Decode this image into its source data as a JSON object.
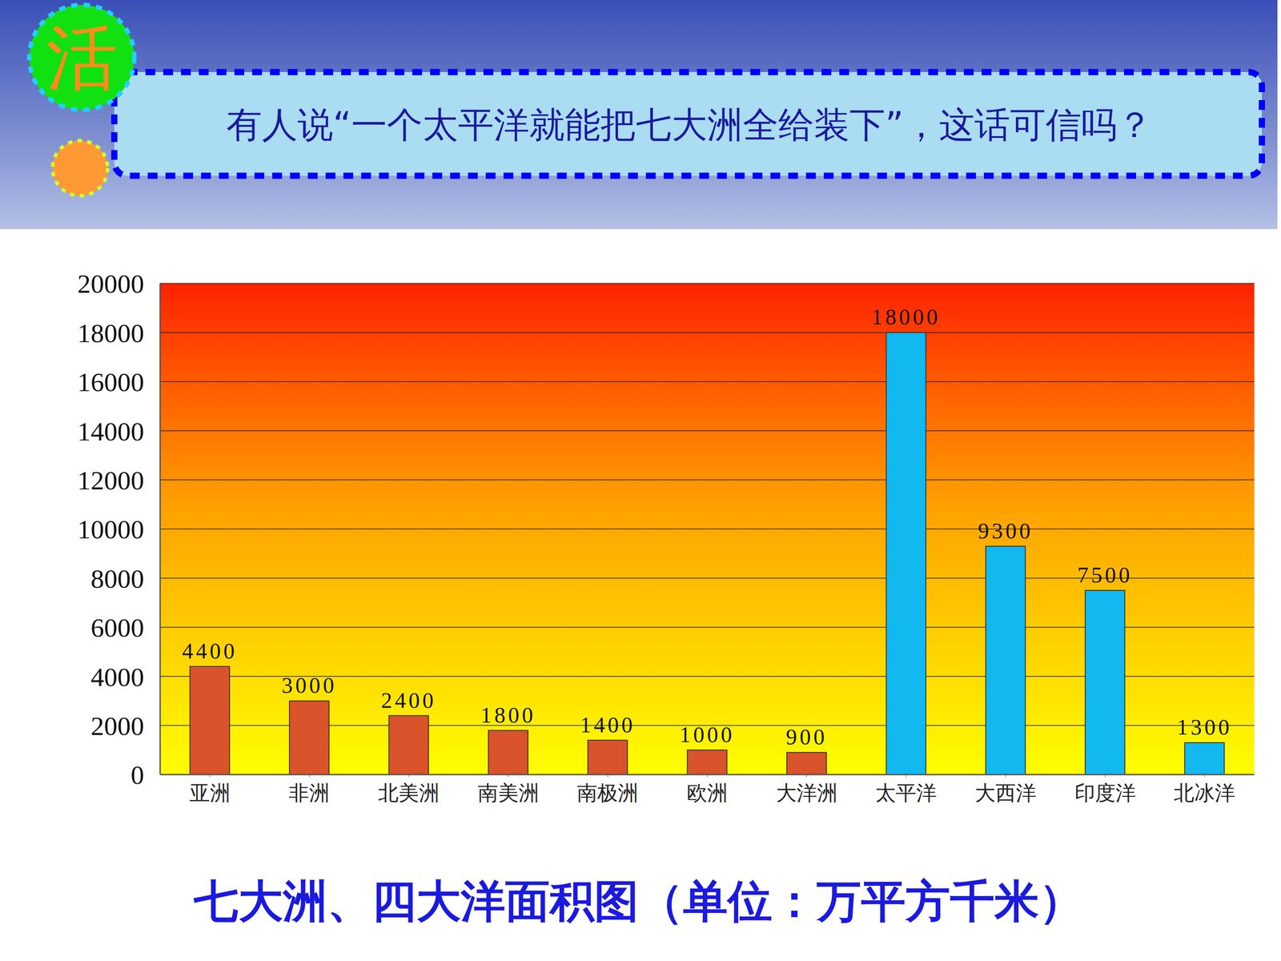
{
  "header": {
    "badge": "活",
    "question": "有人说“一个太平洋就能把七大洲全给装下”，这话可信吗？"
  },
  "chart_data": {
    "type": "bar",
    "title": "七大洲、四大洋面积图（单位：万平方千米）",
    "categories": [
      "亚洲",
      "非洲",
      "北美洲",
      "南美洲",
      "南极洲",
      "欧洲",
      "大洋洲",
      "太平洋",
      "大西洋",
      "印度洋",
      "北冰洋"
    ],
    "values": [
      4400,
      3000,
      2400,
      1800,
      1400,
      1000,
      900,
      18000,
      9300,
      7500,
      1300
    ],
    "colors": [
      "#d9532b",
      "#d9532b",
      "#d9532b",
      "#d9532b",
      "#d9532b",
      "#d9532b",
      "#d9532b",
      "#12b8f0",
      "#12b8f0",
      "#12b8f0",
      "#12b8f0"
    ],
    "ylim": [
      0,
      20000
    ],
    "yticks": [
      0,
      2000,
      4000,
      6000,
      8000,
      10000,
      12000,
      14000,
      16000,
      18000,
      20000
    ],
    "grid": true,
    "data_labels": true
  }
}
